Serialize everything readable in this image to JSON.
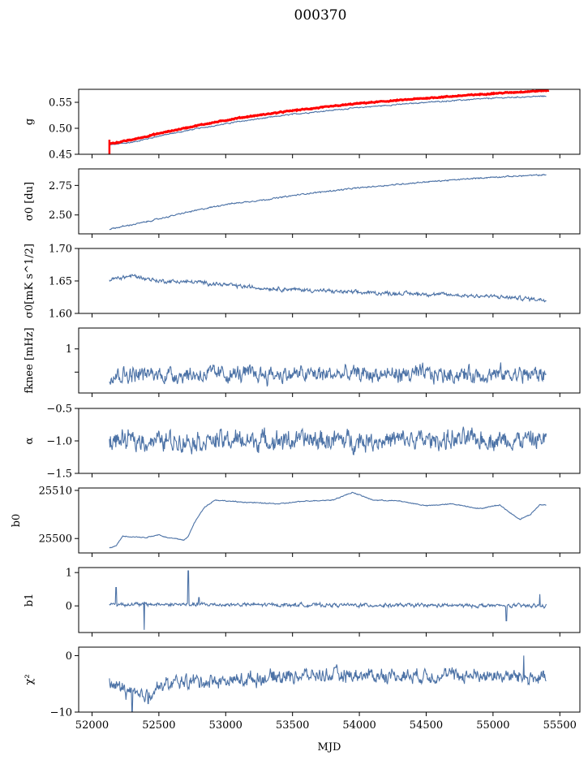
{
  "figure": {
    "title": "000370",
    "xlabel": "MJD",
    "xlim": [
      51900,
      55650
    ],
    "xticks": [
      52000,
      52500,
      53000,
      53500,
      54000,
      54500,
      55000,
      55500
    ],
    "xtick_labels": [
      "52000",
      "52500",
      "53000",
      "53500",
      "54000",
      "54500",
      "55000",
      "55500"
    ],
    "mjd_start": 52130,
    "mjd_end": 55400,
    "line_color": "#4c72a6",
    "highlight_color": "#ff0000"
  },
  "chart_data": [
    {
      "type": "line",
      "ylabel_html": "g",
      "ylim": [
        0.45,
        0.575
      ],
      "yticks": [
        0.45,
        0.5,
        0.55
      ],
      "ytick_labels": [
        "0.45",
        "0.50",
        "0.55"
      ],
      "series": [
        {
          "color": "#4c72a6",
          "keypoints": [
            [
              52130,
              0.468
            ],
            [
              52300,
              0.473
            ],
            [
              52500,
              0.485
            ],
            [
              52800,
              0.5
            ],
            [
              53100,
              0.513
            ],
            [
              53500,
              0.527
            ],
            [
              54000,
              0.54
            ],
            [
              54500,
              0.55
            ],
            [
              55000,
              0.558
            ],
            [
              55400,
              0.562
            ]
          ],
          "noise": 0.0008
        },
        {
          "color": "#ff0000",
          "keypoints": [
            [
              52130,
              0.47
            ],
            [
              52300,
              0.478
            ],
            [
              52500,
              0.49
            ],
            [
              52800,
              0.506
            ],
            [
              53100,
              0.52
            ],
            [
              53500,
              0.534
            ],
            [
              54000,
              0.548
            ],
            [
              54500,
              0.558
            ],
            [
              55000,
              0.567
            ],
            [
              55420,
              0.573
            ]
          ],
          "noise": 0.0007
        }
      ]
    },
    {
      "type": "line",
      "ylabel_html": "σ0 [du]",
      "ylim": [
        2.34,
        2.89
      ],
      "yticks": [
        2.5,
        2.75
      ],
      "ytick_labels": [
        "2.50",
        "2.75"
      ],
      "series": [
        {
          "color": "#4c72a6",
          "keypoints": [
            [
              52130,
              2.38
            ],
            [
              52400,
              2.44
            ],
            [
              52700,
              2.52
            ],
            [
              53000,
              2.59
            ],
            [
              53300,
              2.63
            ],
            [
              53600,
              2.68
            ],
            [
              54000,
              2.73
            ],
            [
              54500,
              2.78
            ],
            [
              55000,
              2.82
            ],
            [
              55400,
              2.84
            ]
          ],
          "noise": 0.004
        }
      ]
    },
    {
      "type": "line",
      "ylabel_html": "σ0[mK s^1/2]",
      "ylim": [
        1.6,
        1.7
      ],
      "yticks": [
        1.6,
        1.65,
        1.7
      ],
      "ytick_labels": [
        "1.60",
        "1.65",
        "1.70"
      ],
      "series": [
        {
          "color": "#4c72a6",
          "keypoints": [
            [
              52130,
              1.652
            ],
            [
              52300,
              1.658
            ],
            [
              52500,
              1.65
            ],
            [
              52800,
              1.648
            ],
            [
              53200,
              1.64
            ],
            [
              53600,
              1.636
            ],
            [
              54000,
              1.632
            ],
            [
              54500,
              1.63
            ],
            [
              55000,
              1.626
            ],
            [
              55400,
              1.621
            ]
          ],
          "noise": 0.0022
        }
      ]
    },
    {
      "type": "line",
      "ylabel_html": "fknee [mHz]",
      "ylim": [
        0.05,
        1.45
      ],
      "yticks": [
        0.5,
        1.0
      ],
      "ytick_labels": [
        "",
        "1"
      ],
      "series": [
        {
          "color": "#4c72a6",
          "keypoints": [
            [
              52130,
              0.45
            ],
            [
              55400,
              0.45
            ]
          ],
          "noise": 0.13
        }
      ]
    },
    {
      "type": "line",
      "ylabel_html": "α",
      "ylim": [
        -1.5,
        -0.5
      ],
      "yticks": [
        -1.5,
        -1.0,
        -0.5
      ],
      "ytick_labels": [
        "−1.5",
        "−1.0",
        "−0.5"
      ],
      "series": [
        {
          "color": "#4c72a6",
          "keypoints": [
            [
              52130,
              -1.0
            ],
            [
              55400,
              -0.98
            ]
          ],
          "noise": 0.11
        }
      ]
    },
    {
      "type": "line",
      "ylabel_html": "b0",
      "ylim": [
        25497,
        25510.5
      ],
      "yticks": [
        25500,
        25510
      ],
      "ytick_labels": [
        "25500",
        "25510"
      ],
      "series": [
        {
          "color": "#4c72a6",
          "keypoints": [
            [
              52130,
              25498
            ],
            [
              52180,
              25498.5
            ],
            [
              52230,
              25500.5
            ],
            [
              52400,
              25500.2
            ],
            [
              52500,
              25500.8
            ],
            [
              52560,
              25500.2
            ],
            [
              52690,
              25499.7
            ],
            [
              52720,
              25500.4
            ],
            [
              52760,
              25503
            ],
            [
              52840,
              25506.5
            ],
            [
              52920,
              25508
            ],
            [
              53100,
              25507.6
            ],
            [
              53400,
              25507.2
            ],
            [
              53600,
              25507.8
            ],
            [
              53800,
              25508
            ],
            [
              53950,
              25509.6
            ],
            [
              54100,
              25508
            ],
            [
              54300,
              25507.8
            ],
            [
              54500,
              25506.8
            ],
            [
              54700,
              25507.2
            ],
            [
              54900,
              25506.2
            ],
            [
              55050,
              25507
            ],
            [
              55120,
              25505.5
            ],
            [
              55200,
              25504
            ],
            [
              55280,
              25505
            ],
            [
              55350,
              25507
            ],
            [
              55400,
              25507
            ]
          ],
          "noise": 0.07
        }
      ]
    },
    {
      "type": "line",
      "ylabel_html": "b1",
      "ylim": [
        -0.8,
        1.15
      ],
      "yticks": [
        0,
        1
      ],
      "ytick_labels": [
        "0",
        "1"
      ],
      "series": [
        {
          "color": "#4c72a6",
          "keypoints": [
            [
              52130,
              0.05
            ],
            [
              55400,
              0.0
            ]
          ],
          "noise": 0.04,
          "spikes": [
            [
              52180,
              0.55
            ],
            [
              52390,
              -0.72
            ],
            [
              52720,
              1.05
            ],
            [
              52800,
              0.25
            ],
            [
              55100,
              -0.45
            ],
            [
              55350,
              0.35
            ]
          ]
        }
      ]
    },
    {
      "type": "line",
      "ylabel_html": "χ²",
      "ylim": [
        -10,
        1.5
      ],
      "yticks": [
        -10,
        0
      ],
      "ytick_labels": [
        "−10",
        "0"
      ],
      "series": [
        {
          "color": "#4c72a6",
          "keypoints": [
            [
              52130,
              -5
            ],
            [
              52250,
              -6
            ],
            [
              52350,
              -7.5
            ],
            [
              52500,
              -5.5
            ],
            [
              52700,
              -4.5
            ],
            [
              53000,
              -4.5
            ],
            [
              53500,
              -3.5
            ],
            [
              54000,
              -3.5
            ],
            [
              54500,
              -3.5
            ],
            [
              55000,
              -3.5
            ],
            [
              55400,
              -4
            ]
          ],
          "noise": 0.9,
          "spikes": [
            [
              52300,
              -10
            ],
            [
              52420,
              -8.5
            ],
            [
              55230,
              0
            ]
          ]
        }
      ]
    }
  ]
}
